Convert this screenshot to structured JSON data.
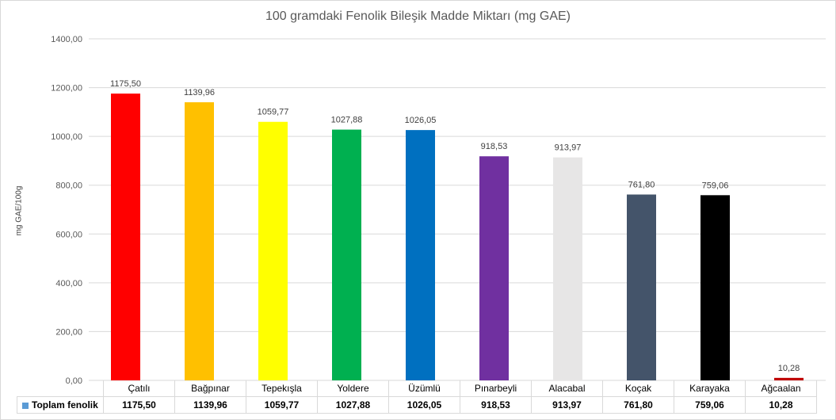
{
  "chart_data": {
    "type": "bar",
    "title": "100 gramdaki Fenolik Bileşik Madde Miktarı (mg GAE)",
    "ylabel": "mg GAE/100g",
    "xlabel": "",
    "ylim": [
      0,
      1400
    ],
    "yticks": [
      "0,00",
      "200,00",
      "400,00",
      "600,00",
      "800,00",
      "1000,00",
      "1200,00",
      "1400,00"
    ],
    "grid": true,
    "categories": [
      "Çatılı",
      "Bağpınar",
      "Tepekışla",
      "Yoldere",
      "Üzümlü",
      "Pınarbeyli",
      "Alacabal",
      "Koçak",
      "Karayaka",
      "Ağcaalan"
    ],
    "series": [
      {
        "name": "Toplam fenolik",
        "values": [
          1175.5,
          1139.96,
          1059.77,
          1027.88,
          1026.05,
          918.53,
          913.97,
          761.8,
          759.06,
          10.28
        ],
        "labels": [
          "1175,50",
          "1139,96",
          "1059,77",
          "1027,88",
          "1026,05",
          "918,53",
          "913,97",
          "761,80",
          "759,06",
          "10,28"
        ],
        "colors": [
          "#ff0000",
          "#ffc000",
          "#ffff00",
          "#00b050",
          "#0070c0",
          "#7030a0",
          "#e7e6e6",
          "#44546a",
          "#000000",
          "#c00000"
        ]
      }
    ],
    "legend_color": "#5b9bd5"
  }
}
